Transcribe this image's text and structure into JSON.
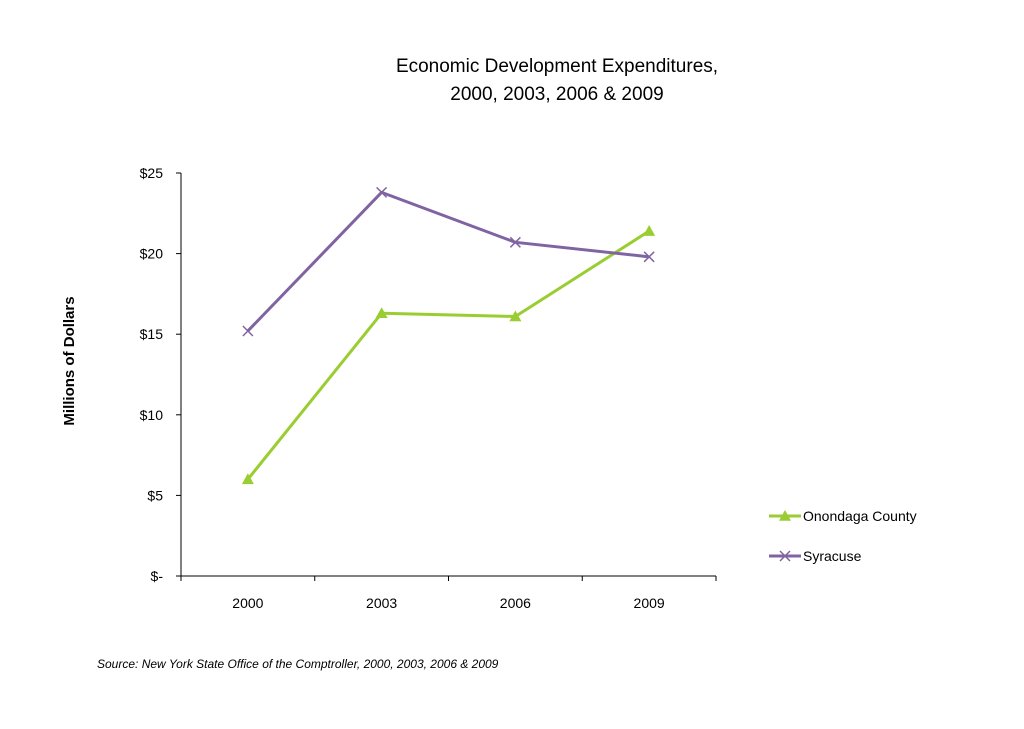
{
  "chart_data": {
    "type": "line",
    "title": [
      "Economic Development Expenditures,",
      "2000, 2003, 2006 & 2009"
    ],
    "ylabel": "Millions of Dollars",
    "xlabel": "",
    "categories": [
      "2000",
      "2003",
      "2006",
      "2009"
    ],
    "ylim": [
      0,
      25
    ],
    "yticks": [
      0,
      5,
      10,
      15,
      20,
      25
    ],
    "ytick_labels": [
      "$-",
      "$5",
      "$10",
      "$15",
      "$20",
      "$25"
    ],
    "grid": false,
    "legend_position": "right",
    "series": [
      {
        "name": "Onondaga County",
        "color": "#9acd32",
        "marker": "triangle",
        "values": [
          6.0,
          16.3,
          16.1,
          21.4
        ]
      },
      {
        "name": "Syracuse",
        "color": "#8064a2",
        "marker": "x",
        "values": [
          15.2,
          23.8,
          20.7,
          19.8
        ]
      }
    ],
    "source": "Source: New York State Office of the Comptroller, 2000, 2003, 2006 & 2009"
  }
}
